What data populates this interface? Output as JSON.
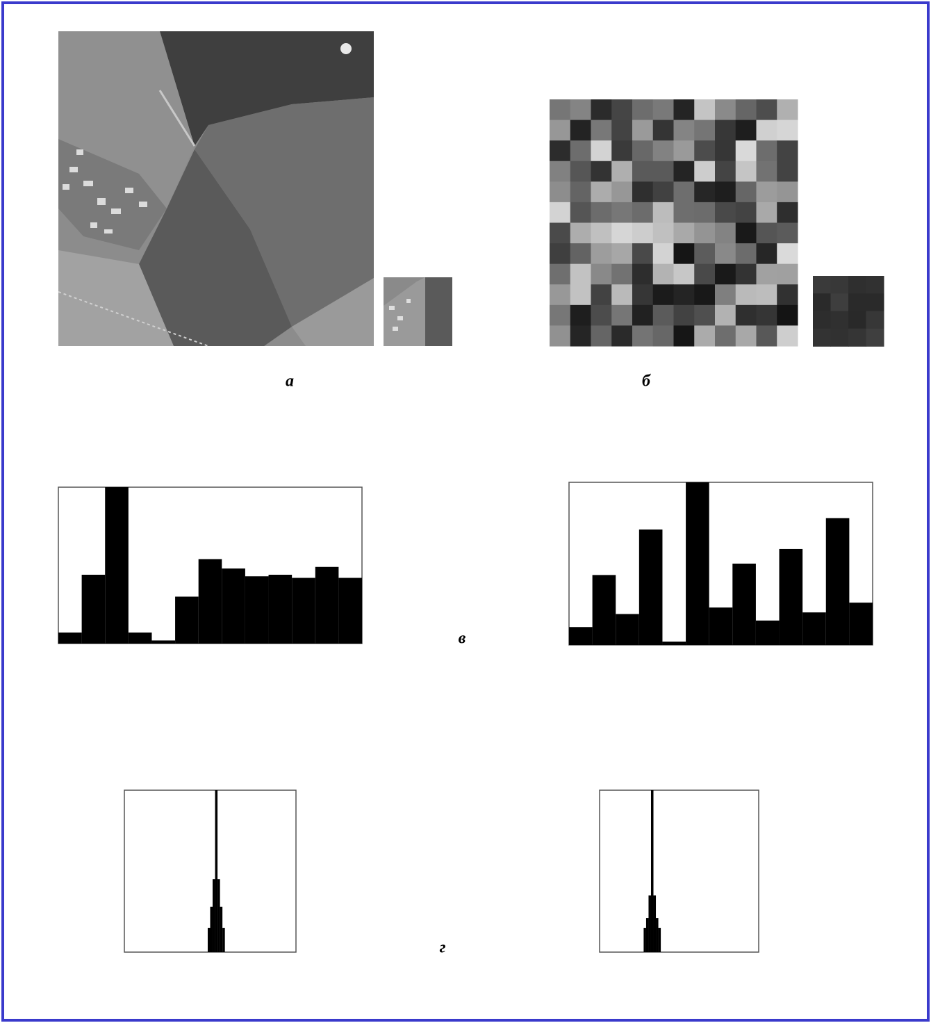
{
  "labels": {
    "a": "а",
    "b": "б",
    "v": "в",
    "g": "г"
  },
  "chart_data": [
    {
      "type": "histogram",
      "color": "#000000",
      "xlim": [
        0,
        13
      ],
      "ylim": [
        0,
        100
      ],
      "bins": [
        0,
        1,
        2,
        3,
        4,
        5,
        6,
        7,
        8,
        9,
        10,
        11,
        12,
        13
      ],
      "values": [
        7,
        44,
        100,
        7,
        2,
        30,
        54,
        48,
        43,
        44,
        42,
        49,
        42
      ]
    },
    {
      "type": "histogram",
      "color": "#000000",
      "xlim": [
        0,
        13
      ],
      "ylim": [
        0,
        100
      ],
      "bins": [
        0,
        1,
        2,
        3,
        4,
        5,
        6,
        7,
        8,
        9,
        10,
        11,
        12,
        13
      ],
      "values": [
        11,
        43,
        19,
        71,
        2,
        100,
        23,
        50,
        15,
        59,
        20,
        78,
        26
      ]
    },
    {
      "type": "histogram",
      "color": "#000000",
      "xlim": [
        0,
        70
      ],
      "ylim": [
        0,
        100
      ],
      "bins": [
        34,
        35,
        36,
        37,
        38,
        39,
        40,
        41
      ],
      "values": [
        15,
        28,
        45,
        100,
        45,
        28,
        15
      ]
    },
    {
      "type": "histogram",
      "color": "#000000",
      "xlim": [
        0,
        65
      ],
      "ylim": [
        0,
        100
      ],
      "bins": [
        18,
        19,
        20,
        21,
        22,
        23,
        24,
        25
      ],
      "values": [
        15,
        21,
        35,
        100,
        35,
        21,
        15
      ]
    }
  ]
}
